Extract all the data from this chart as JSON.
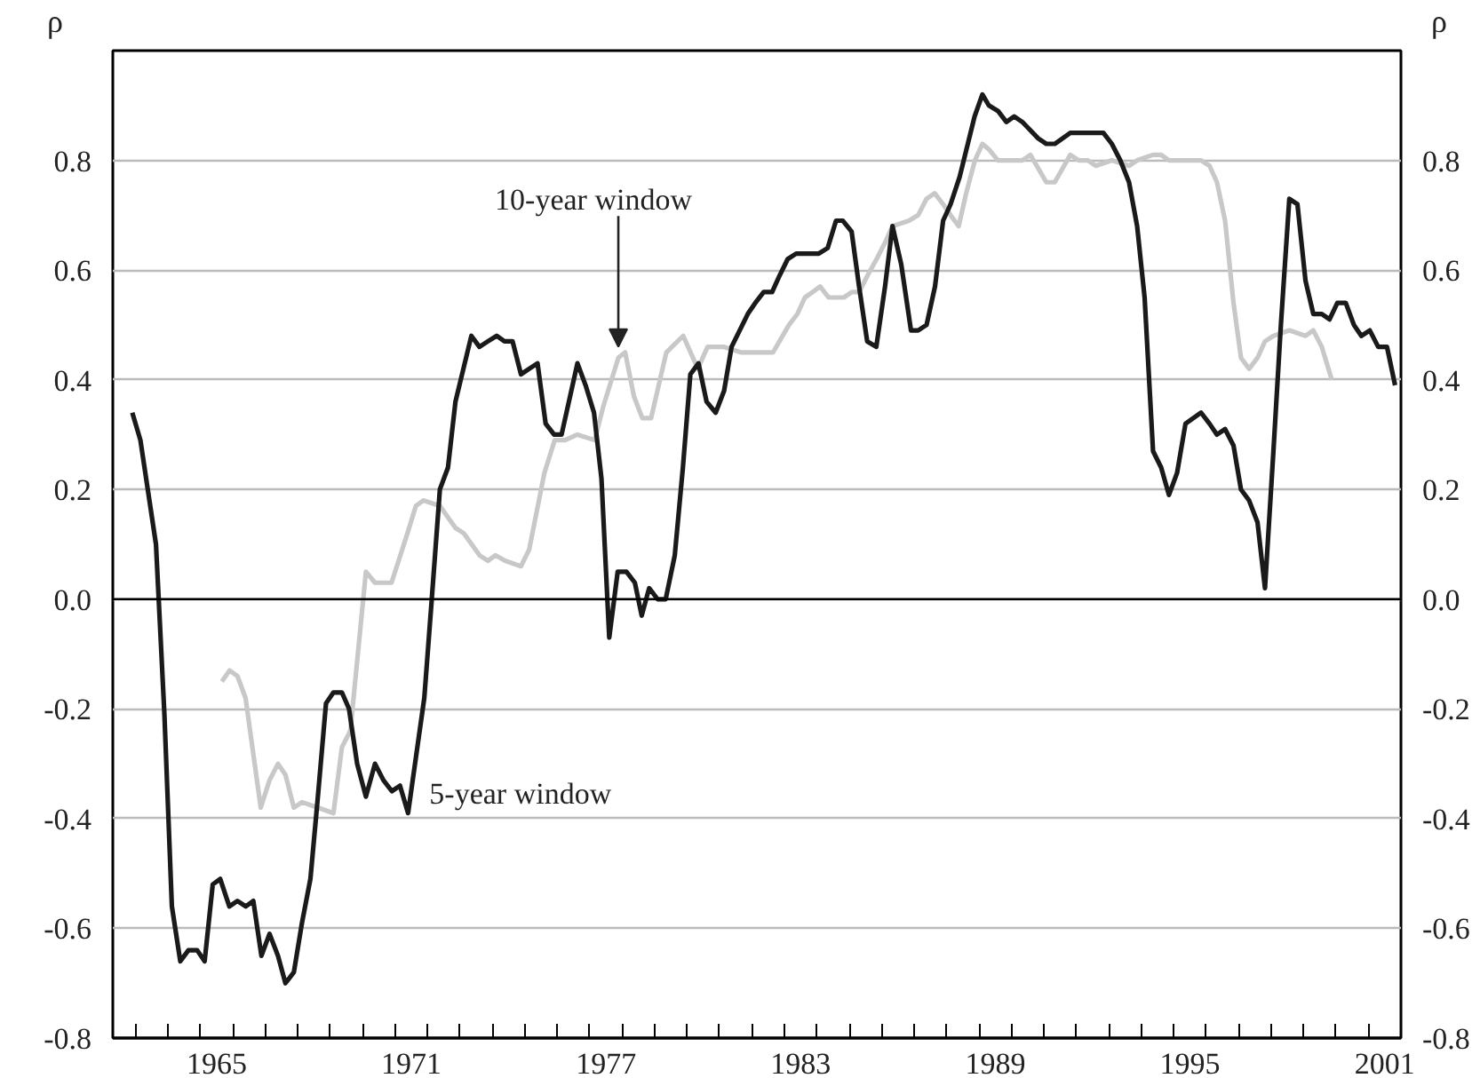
{
  "chart_data": {
    "type": "line",
    "ylabel": "ρ",
    "y2label": "ρ",
    "xlim": [
      1962.3,
      2002
    ],
    "xticks": [
      {
        "value": 1963,
        "label": null
      },
      {
        "value": 1964,
        "label": null
      },
      {
        "value": 1965,
        "label": null
      },
      {
        "value": 1965.5,
        "label": "1965"
      },
      {
        "value": 1966,
        "label": null
      },
      {
        "value": 1967,
        "label": null
      },
      {
        "value": 1968,
        "label": null
      },
      {
        "value": 1969,
        "label": null
      },
      {
        "value": 1970,
        "label": null
      },
      {
        "value": 1971,
        "label": null
      },
      {
        "value": 1971.5,
        "label": "1971"
      },
      {
        "value": 1972,
        "label": null
      },
      {
        "value": 1973,
        "label": null
      },
      {
        "value": 1974,
        "label": null
      },
      {
        "value": 1975,
        "label": null
      },
      {
        "value": 1976,
        "label": null
      },
      {
        "value": 1977,
        "label": null
      },
      {
        "value": 1977.5,
        "label": "1977"
      },
      {
        "value": 1978,
        "label": null
      },
      {
        "value": 1979,
        "label": null
      },
      {
        "value": 1980,
        "label": null
      },
      {
        "value": 1981,
        "label": null
      },
      {
        "value": 1982,
        "label": null
      },
      {
        "value": 1983,
        "label": null
      },
      {
        "value": 1983.5,
        "label": "1983"
      },
      {
        "value": 1984,
        "label": null
      },
      {
        "value": 1985,
        "label": null
      },
      {
        "value": 1986,
        "label": null
      },
      {
        "value": 1987,
        "label": null
      },
      {
        "value": 1988,
        "label": null
      },
      {
        "value": 1989,
        "label": null
      },
      {
        "value": 1989.5,
        "label": "1989"
      },
      {
        "value": 1990,
        "label": null
      },
      {
        "value": 1991,
        "label": null
      },
      {
        "value": 1992,
        "label": null
      },
      {
        "value": 1993,
        "label": null
      },
      {
        "value": 1994,
        "label": null
      },
      {
        "value": 1995,
        "label": null
      },
      {
        "value": 1995.5,
        "label": "1995"
      },
      {
        "value": 1996,
        "label": null
      },
      {
        "value": 1997,
        "label": null
      },
      {
        "value": 1998,
        "label": null
      },
      {
        "value": 1999,
        "label": null
      },
      {
        "value": 2000,
        "label": null
      },
      {
        "value": 2001,
        "label": null
      },
      {
        "value": 2001.5,
        "label": "2001"
      }
    ],
    "ylim": [
      -0.8,
      1.0
    ],
    "yticks": [
      -0.8,
      -0.6,
      -0.4,
      -0.2,
      {
        "value": 0,
        "label": "0.0"
      },
      0.2,
      0.4,
      0.6,
      0.8
    ],
    "y2lim": [
      -0.8,
      1.0
    ],
    "y2ticks": [
      -0.8,
      -0.6,
      -0.4,
      -0.2,
      {
        "value": 0,
        "label": "0.0"
      },
      0.2,
      0.4,
      0.6,
      0.8
    ],
    "grid": "y",
    "ref_lines": [
      {
        "axis": "y",
        "value": 0,
        "label": null,
        "color": "#000000"
      }
    ],
    "annotations": [
      {
        "text": "5-year window",
        "x": 1971.4,
        "y": -0.39
      },
      {
        "text": "10-year window",
        "x": 1977.88,
        "y": 0.44
      }
    ],
    "series": [
      {
        "color": "#c8c8c8",
        "x": [
          1965.66,
          1965.9,
          1966.14,
          1966.39,
          1966.86,
          1967.13,
          1967.39,
          1967.62,
          1967.88,
          1968.13,
          1968.62,
          1969.1,
          1969.36,
          1969.62,
          1970.1,
          1970.38,
          1970.89,
          1971.38,
          1971.64,
          1971.87,
          1972.38,
          1972.86,
          1973.12,
          1973.6,
          1973.86,
          1974.09,
          1974.39,
          1974.88,
          1975.13,
          1975.6,
          1975.92,
          1976.24,
          1976.62,
          1977.15,
          1977.41,
          1977.88,
          1978.09,
          1978.36,
          1978.62,
          1978.89,
          1979.36,
          1979.88,
          1980.33,
          1980.63,
          1981.12,
          1981.65,
          1982.65,
          1983.14,
          1983.4,
          1983.63,
          1983.87,
          1984.1,
          1984.36,
          1984.83,
          1985.08,
          1985.3,
          1985.56,
          1985.84,
          1986.1,
          1986.33,
          1986.84,
          1987.12,
          1987.38,
          1987.63,
          1987.89,
          1988.12,
          1988.37,
          1988.6,
          1988.87,
          1989.1,
          1989.3,
          1989.58,
          1990.07,
          1990.33,
          1990.58,
          1991.07,
          1991.33,
          1991.81,
          1992.07,
          1992.35,
          1992.6,
          1993.09,
          1993.62,
          1993.87,
          1994.36,
          1994.61,
          1994.85,
          1995.84,
          1996.1,
          1996.33,
          1996.58,
          1996.84,
          1997.07,
          1997.32,
          1997.58,
          1997.81,
          1998.07,
          1998.56,
          1999.06,
          1999.3,
          1999.56,
          1999.87
        ],
        "values": [
          -0.15,
          -0.13,
          -0.14,
          -0.18,
          -0.38,
          -0.33,
          -0.3,
          -0.32,
          -0.38,
          -0.37,
          -0.38,
          -0.39,
          -0.27,
          -0.24,
          0.05,
          0.03,
          0.03,
          0.12,
          0.17,
          0.18,
          0.17,
          0.13,
          0.12,
          0.08,
          0.07,
          0.08,
          0.07,
          0.06,
          0.09,
          0.23,
          0.29,
          0.29,
          0.3,
          0.29,
          0.35,
          0.44,
          0.45,
          0.37,
          0.33,
          0.33,
          0.45,
          0.48,
          0.42,
          0.46,
          0.46,
          0.45,
          0.45,
          0.5,
          0.52,
          0.55,
          0.56,
          0.57,
          0.55,
          0.55,
          0.56,
          0.56,
          0.59,
          0.62,
          0.65,
          0.68,
          0.69,
          0.7,
          0.73,
          0.74,
          0.72,
          0.7,
          0.68,
          0.74,
          0.8,
          0.83,
          0.82,
          0.8,
          0.8,
          0.8,
          0.81,
          0.76,
          0.76,
          0.81,
          0.8,
          0.8,
          0.79,
          0.8,
          0.79,
          0.8,
          0.81,
          0.81,
          0.8,
          0.8,
          0.79,
          0.76,
          0.69,
          0.54,
          0.44,
          0.42,
          0.44,
          0.47,
          0.48,
          0.49,
          0.48,
          0.49,
          0.46,
          0.4
        ]
      },
      {
        "color": "#1a1a1a",
        "x": [
          1962.9,
          1963.15,
          1963.63,
          1963.89,
          1964.12,
          1964.38,
          1964.63,
          1964.9,
          1965.13,
          1965.38,
          1965.61,
          1965.89,
          1966.14,
          1966.4,
          1966.63,
          1966.88,
          1967.13,
          1967.39,
          1967.62,
          1967.88,
          1968.13,
          1968.39,
          1968.62,
          1968.87,
          1969.1,
          1969.36,
          1969.58,
          1969.83,
          1970.1,
          1970.38,
          1970.64,
          1970.9,
          1971.15,
          1971.4,
          1971.9,
          1972.13,
          1972.38,
          1972.63,
          1972.86,
          1973.35,
          1973.6,
          1973.86,
          1974.13,
          1974.37,
          1974.62,
          1974.88,
          1975.13,
          1975.39,
          1975.64,
          1975.9,
          1976.13,
          1976.62,
          1976.87,
          1977.13,
          1977.36,
          1977.6,
          1977.86,
          1978.13,
          1978.39,
          1978.6,
          1978.83,
          1979.09,
          1979.34,
          1979.62,
          1979.87,
          1980.1,
          1980.35,
          1980.6,
          1980.88,
          1981.14,
          1981.37,
          1981.62,
          1981.87,
          1982.1,
          1982.36,
          1982.62,
          1982.85,
          1983.1,
          1983.36,
          1983.6,
          1983.84,
          1984.06,
          1984.33,
          1984.59,
          1984.8,
          1985.07,
          1985.3,
          1985.55,
          1985.83,
          1986.1,
          1986.33,
          1986.6,
          1986.9,
          1987.12,
          1987.38,
          1987.64,
          1987.89,
          1988.12,
          1988.4,
          1988.86,
          1989.1,
          1989.3,
          1989.58,
          1989.84,
          1990.08,
          1990.33,
          1990.82,
          1991.07,
          1991.33,
          1991.81,
          1992.35,
          1992.83,
          1993.09,
          1993.35,
          1993.62,
          1993.87,
          1994.1,
          1994.36,
          1994.61,
          1994.85,
          1995.1,
          1995.36,
          1995.6,
          1995.84,
          1996.1,
          1996.33,
          1996.58,
          1996.84,
          1997.07,
          1997.32,
          1997.58,
          1997.81,
          1998.07,
          1998.3,
          1998.56,
          1998.81,
          1999.06,
          1999.3,
          1999.56,
          1999.8,
          2000.04,
          2000.3,
          2000.55,
          2000.78,
          2001.04,
          2001.3,
          2001.57,
          2001.82
        ],
        "values": [
          0.34,
          0.29,
          0.1,
          -0.21,
          -0.56,
          -0.66,
          -0.64,
          -0.64,
          -0.66,
          -0.52,
          -0.51,
          -0.56,
          -0.55,
          -0.56,
          -0.55,
          -0.65,
          -0.61,
          -0.65,
          -0.7,
          -0.68,
          -0.59,
          -0.51,
          -0.36,
          -0.19,
          -0.17,
          -0.17,
          -0.2,
          -0.3,
          -0.36,
          -0.3,
          -0.33,
          -0.35,
          -0.34,
          -0.39,
          -0.18,
          0.0,
          0.2,
          0.24,
          0.36,
          0.48,
          0.46,
          0.47,
          0.48,
          0.47,
          0.47,
          0.41,
          0.42,
          0.43,
          0.32,
          0.3,
          0.3,
          0.43,
          0.39,
          0.34,
          0.22,
          -0.07,
          0.05,
          0.05,
          0.03,
          -0.03,
          0.02,
          0.0,
          0.0,
          0.08,
          0.24,
          0.41,
          0.43,
          0.36,
          0.34,
          0.38,
          0.46,
          0.49,
          0.52,
          0.54,
          0.56,
          0.56,
          0.59,
          0.62,
          0.63,
          0.63,
          0.63,
          0.63,
          0.64,
          0.69,
          0.69,
          0.67,
          0.57,
          0.47,
          0.46,
          0.57,
          0.68,
          0.61,
          0.49,
          0.49,
          0.5,
          0.57,
          0.69,
          0.72,
          0.77,
          0.88,
          0.92,
          0.9,
          0.89,
          0.87,
          0.88,
          0.87,
          0.84,
          0.83,
          0.83,
          0.85,
          0.85,
          0.85,
          0.83,
          0.8,
          0.76,
          0.68,
          0.55,
          0.27,
          0.24,
          0.19,
          0.23,
          0.32,
          0.33,
          0.34,
          0.32,
          0.3,
          0.31,
          0.28,
          0.2,
          0.18,
          0.14,
          0.02,
          0.27,
          0.5,
          0.73,
          0.72,
          0.58,
          0.52,
          0.52,
          0.51,
          0.54,
          0.54,
          0.5,
          0.48,
          0.49,
          0.46,
          0.46,
          0.39
        ]
      }
    ]
  }
}
